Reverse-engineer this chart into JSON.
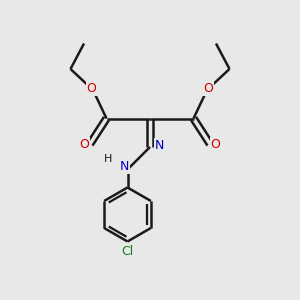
{
  "background_color": "#e8e8e8",
  "bond_color": "#1a1a1a",
  "O_color": "#cc0000",
  "N_color": "#0000cc",
  "Cl_color": "#1a7a1a",
  "H_color": "#1a1a1a",
  "figsize": [
    3.0,
    3.0
  ],
  "dpi": 100,
  "xlim": [
    0,
    10
  ],
  "ylim": [
    0,
    10
  ]
}
